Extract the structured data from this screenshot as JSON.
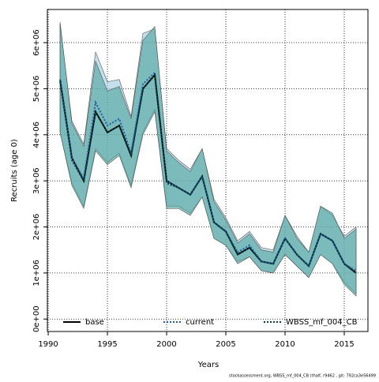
{
  "chart_data": {
    "type": "line",
    "x_label": "Years",
    "y_label": "Recruits (age 0)",
    "note": "stockassessment.org, WBSS_mf_004_CB (thalf, r9462 , git: 792ca3e56499",
    "x": [
      1991,
      1992,
      1993,
      1994,
      1995,
      1996,
      1997,
      1998,
      1999,
      2000,
      2001,
      2002,
      2003,
      2004,
      2005,
      2006,
      2007,
      2008,
      2009,
      2010,
      2011,
      2012,
      2013,
      2014,
      2015,
      2016
    ],
    "series": [
      {
        "name": "base",
        "color": "#000000",
        "linestyle": "solid",
        "values": [
          5200000,
          3500000,
          3000000,
          4500000,
          4050000,
          4200000,
          3550000,
          5000000,
          5300000,
          3000000,
          2850000,
          2700000,
          3100000,
          2100000,
          1900000,
          1400000,
          1550000,
          1250000,
          1200000,
          1750000,
          1400000,
          1150000,
          1850000,
          1700000,
          1200000,
          1000000
        ]
      },
      {
        "name": "current",
        "color": "#1f5fa8",
        "linestyle": "dotted",
        "band_color": "#9ecae1",
        "values": [
          5200000,
          3500000,
          3050000,
          4700000,
          4200000,
          4350000,
          3600000,
          5100000,
          5350000,
          3000000,
          2850000,
          2700000,
          3100000,
          2100000,
          1900000,
          1450000,
          1600000,
          1250000,
          1200000,
          1750000,
          1400000,
          1150000,
          1850000,
          1700000,
          1200000,
          1050000
        ],
        "upper": [
          6400000,
          4300000,
          3800000,
          5800000,
          5150000,
          5200000,
          4400000,
          6200000,
          6300000,
          3700000,
          3450000,
          3250000,
          3700000,
          2600000,
          2200000,
          1700000,
          1900000,
          1550000,
          1500000,
          2250000,
          1800000,
          1450000,
          2450000,
          2250000,
          1800000,
          2000000
        ],
        "lower": [
          4050000,
          2950000,
          2450000,
          3700000,
          3400000,
          3600000,
          2900000,
          4050000,
          4550000,
          2450000,
          2450000,
          2300000,
          2650000,
          1750000,
          1600000,
          1250000,
          1350000,
          1050000,
          1000000,
          1400000,
          1150000,
          900000,
          1400000,
          1200000,
          800000,
          550000
        ]
      },
      {
        "name": "WBSS_mf_004_CB",
        "color": "#0b3d38",
        "linestyle": "dotted",
        "band_color": "#4aa39a",
        "values": [
          5150000,
          3450000,
          3000000,
          4500000,
          4050000,
          4200000,
          3550000,
          5000000,
          5300000,
          2950000,
          2850000,
          2700000,
          3100000,
          2100000,
          1900000,
          1400000,
          1550000,
          1250000,
          1200000,
          1750000,
          1400000,
          1150000,
          1850000,
          1700000,
          1200000,
          1000000
        ],
        "upper": [
          6450000,
          4250000,
          3750000,
          5600000,
          4950000,
          5050000,
          4350000,
          6050000,
          6350000,
          3650000,
          3400000,
          3200000,
          3700000,
          2550000,
          2150000,
          1650000,
          1850000,
          1500000,
          1450000,
          2250000,
          1750000,
          1450000,
          2450000,
          2300000,
          1750000,
          1950000
        ],
        "lower": [
          4050000,
          2900000,
          2400000,
          3650000,
          3350000,
          3550000,
          2850000,
          4000000,
          4500000,
          2400000,
          2400000,
          2250000,
          2650000,
          1750000,
          1600000,
          1200000,
          1350000,
          1050000,
          1000000,
          1400000,
          1150000,
          900000,
          1400000,
          1200000,
          750000,
          500000
        ]
      }
    ],
    "xlim": [
      1989.93,
      2017
    ],
    "ylim": [
      -270000,
      6720000
    ],
    "xticks": [
      1990,
      1995,
      2000,
      2005,
      2010,
      2015
    ],
    "yticks": [
      {
        "value": 0,
        "label": "0e+00"
      },
      {
        "value": 1000000,
        "label": "1e+06"
      },
      {
        "value": 2000000,
        "label": "2e+06"
      },
      {
        "value": 3000000,
        "label": "3e+06"
      },
      {
        "value": 4000000,
        "label": "4e+06"
      },
      {
        "value": 5000000,
        "label": "5e+06"
      },
      {
        "value": 6000000,
        "label": "6e+06"
      }
    ],
    "grid": true,
    "legend": "bottom"
  }
}
